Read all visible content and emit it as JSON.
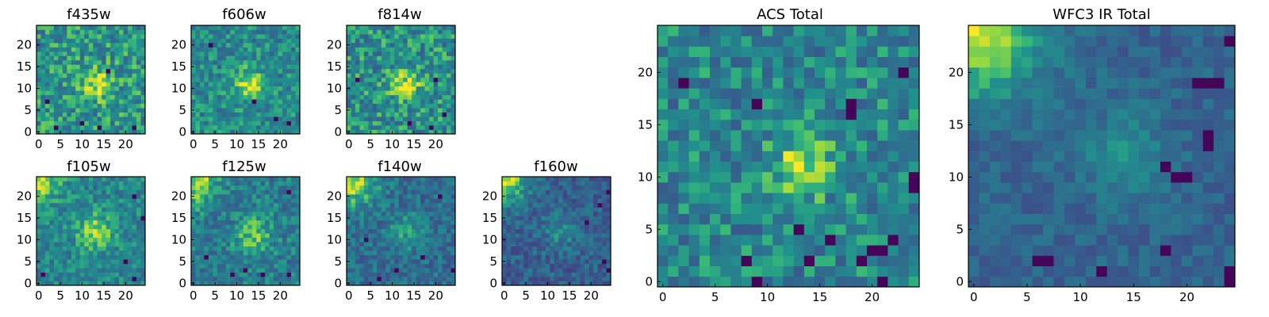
{
  "figure": {
    "background": "#ffffff"
  },
  "chart_data": {
    "type": "heatmap",
    "colormap": "viridis",
    "grid": false,
    "image_size": [
      25,
      25
    ],
    "origin": "lower",
    "panels": [
      {
        "id": "f435w",
        "title": "f435w",
        "x_ticks": [
          "0",
          "5",
          "10",
          "15",
          "20"
        ],
        "y_ticks": [
          "0",
          "5",
          "10",
          "15",
          "20"
        ],
        "blob": {
          "cx": 13,
          "cy": 11,
          "sigma": 2.5,
          "amp": 0.3
        },
        "corner": {
          "cx": 0,
          "cy": 24,
          "sigma": 4,
          "amp": 0.0
        },
        "base": 0.62,
        "noise": 0.22,
        "dark_pixels": [
          [
            2,
            7
          ],
          [
            4,
            1
          ],
          [
            14,
            1
          ],
          [
            16,
            14
          ],
          [
            10,
            2
          ],
          [
            22,
            1
          ]
        ]
      },
      {
        "id": "f606w",
        "title": "f606w",
        "x_ticks": [
          "0",
          "5",
          "10",
          "15",
          "20"
        ],
        "y_ticks": [
          "0",
          "5",
          "10",
          "15",
          "20"
        ],
        "blob": {
          "cx": 13,
          "cy": 11,
          "sigma": 2.5,
          "amp": 0.35
        },
        "corner": {
          "cx": 0,
          "cy": 24,
          "sigma": 4,
          "amp": 0.0
        },
        "base": 0.58,
        "noise": 0.18,
        "dark_pixels": [
          [
            4,
            20
          ],
          [
            14,
            7
          ],
          [
            19,
            3
          ],
          [
            22,
            2
          ]
        ]
      },
      {
        "id": "f814w",
        "title": "f814w",
        "x_ticks": [
          "0",
          "5",
          "10",
          "15",
          "20"
        ],
        "y_ticks": [
          "0",
          "5",
          "10",
          "15",
          "20"
        ],
        "blob": {
          "cx": 13,
          "cy": 11,
          "sigma": 2.5,
          "amp": 0.3
        },
        "corner": {
          "cx": 0,
          "cy": 24,
          "sigma": 4,
          "amp": 0.0
        },
        "base": 0.6,
        "noise": 0.22,
        "dark_pixels": [
          [
            14,
            2
          ],
          [
            19,
            1
          ],
          [
            22,
            4
          ],
          [
            20,
            12
          ],
          [
            2,
            12
          ]
        ]
      },
      {
        "id": "f105w",
        "title": "f105w",
        "x_ticks": [
          "0",
          "5",
          "10",
          "15",
          "20"
        ],
        "y_ticks": [
          "0",
          "5",
          "10",
          "15",
          "20"
        ],
        "blob": {
          "cx": 13,
          "cy": 12,
          "sigma": 3,
          "amp": 0.3
        },
        "corner": {
          "cx": 0,
          "cy": 24,
          "sigma": 3.5,
          "amp": 0.35
        },
        "base": 0.56,
        "noise": 0.16,
        "dark_pixels": [
          [
            22,
            20
          ],
          [
            24,
            15
          ],
          [
            20,
            5
          ],
          [
            22,
            1
          ],
          [
            1,
            2
          ]
        ]
      },
      {
        "id": "f125w",
        "title": "f125w",
        "x_ticks": [
          "0",
          "5",
          "10",
          "15",
          "20"
        ],
        "y_ticks": [
          "0",
          "5",
          "10",
          "15",
          "20"
        ],
        "blob": {
          "cx": 14,
          "cy": 11,
          "sigma": 3,
          "amp": 0.3
        },
        "corner": {
          "cx": 0,
          "cy": 24,
          "sigma": 4,
          "amp": 0.4
        },
        "base": 0.52,
        "noise": 0.17,
        "dark_pixels": [
          [
            9,
            2
          ],
          [
            12,
            3
          ],
          [
            16,
            2
          ],
          [
            22,
            2
          ],
          [
            22,
            21
          ],
          [
            3,
            6
          ]
        ]
      },
      {
        "id": "f140w",
        "title": "f140w",
        "x_ticks": [
          "0",
          "5",
          "10",
          "15",
          "20"
        ],
        "y_ticks": [
          "0",
          "5",
          "10",
          "15",
          "20"
        ],
        "blob": {
          "cx": 13,
          "cy": 12,
          "sigma": 3,
          "amp": 0.2
        },
        "corner": {
          "cx": 0,
          "cy": 24,
          "sigma": 4.5,
          "amp": 0.5
        },
        "base": 0.45,
        "noise": 0.16,
        "dark_pixels": [
          [
            7,
            1
          ],
          [
            11,
            3
          ],
          [
            4,
            10
          ],
          [
            24,
            3
          ],
          [
            21,
            20
          ],
          [
            17,
            6
          ]
        ]
      },
      {
        "id": "f160w",
        "title": "f160w",
        "x_ticks": [
          "0",
          "5",
          "10",
          "15",
          "20"
        ],
        "y_ticks": [
          "0",
          "5",
          "10",
          "15",
          "20"
        ],
        "blob": {
          "cx": 13,
          "cy": 12,
          "sigma": 3,
          "amp": 0.2
        },
        "corner": {
          "cx": 0,
          "cy": 24,
          "sigma": 4,
          "amp": 0.55
        },
        "base": 0.38,
        "noise": 0.15,
        "dark_pixels": [
          [
            22,
            18
          ],
          [
            24,
            21
          ],
          [
            24,
            3
          ],
          [
            23,
            5
          ],
          [
            19,
            14
          ]
        ]
      },
      {
        "id": "acs-total",
        "title": "ACS Total",
        "x_ticks": [
          "0",
          "5",
          "10",
          "15",
          "20"
        ],
        "y_ticks": [
          "0",
          "5",
          "10",
          "15",
          "20"
        ],
        "blob": {
          "cx": 13.5,
          "cy": 11,
          "sigma": 2,
          "amp": 0.38
        },
        "corner": {
          "cx": 0,
          "cy": 24,
          "sigma": 4,
          "amp": 0.0
        },
        "base": 0.56,
        "noise": 0.2,
        "dark_pixels": [
          [
            24,
            10
          ],
          [
            24,
            9
          ],
          [
            13,
            5
          ],
          [
            18,
            16
          ],
          [
            18,
            17
          ],
          [
            9,
            17
          ],
          [
            20,
            3
          ],
          [
            21,
            3
          ],
          [
            22,
            4
          ],
          [
            16,
            4
          ],
          [
            8,
            2
          ],
          [
            14,
            2
          ],
          [
            21,
            0
          ],
          [
            23,
            20
          ],
          [
            19,
            2
          ],
          [
            2,
            19
          ],
          [
            9,
            0
          ]
        ]
      },
      {
        "id": "wfc3-ir-total",
        "title": "WFC3 IR Total",
        "x_ticks": [
          "0",
          "5",
          "10",
          "15",
          "20"
        ],
        "y_ticks": [
          "0",
          "5",
          "10",
          "15",
          "20"
        ],
        "blob": {
          "cx": 14,
          "cy": 12,
          "sigma": 3,
          "amp": 0.2
        },
        "corner": {
          "cx": 0,
          "cy": 24,
          "sigma": 4.5,
          "amp": 0.55
        },
        "base": 0.4,
        "noise": 0.1,
        "dark_pixels": [
          [
            21,
            19
          ],
          [
            22,
            19
          ],
          [
            23,
            19
          ],
          [
            24,
            23
          ],
          [
            18,
            11
          ],
          [
            19,
            10
          ],
          [
            20,
            10
          ],
          [
            7,
            2
          ],
          [
            6,
            2
          ],
          [
            12,
            1
          ],
          [
            24,
            0
          ],
          [
            24,
            1
          ],
          [
            18,
            3
          ],
          [
            22,
            14
          ],
          [
            22,
            13
          ]
        ]
      }
    ]
  }
}
